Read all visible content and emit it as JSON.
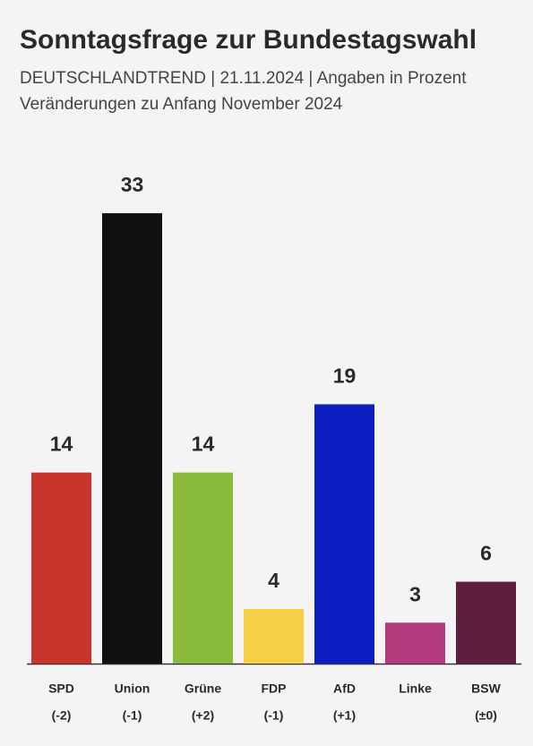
{
  "chart_data": {
    "type": "bar",
    "title": "Sonntagsfrage zur Bundestagswahl",
    "subtitle": "DEUTSCHLANDTREND | 21.11.2024 | Angaben in Prozent",
    "note": "Veränderungen zu Anfang November 2024",
    "categories": [
      "SPD",
      "Union",
      "Grüne",
      "FDP",
      "AfD",
      "Linke",
      "BSW"
    ],
    "values": [
      14,
      33,
      14,
      4,
      19,
      3,
      6
    ],
    "changes": [
      "(-2)",
      "(-1)",
      "(+2)",
      "(-1)",
      "(+1)",
      null,
      "(±0)"
    ],
    "colors": [
      "#c8342b",
      "#111111",
      "#8aba3c",
      "#f5cf44",
      "#0b1fc0",
      "#b33a7d",
      "#5e1f3f"
    ]
  }
}
